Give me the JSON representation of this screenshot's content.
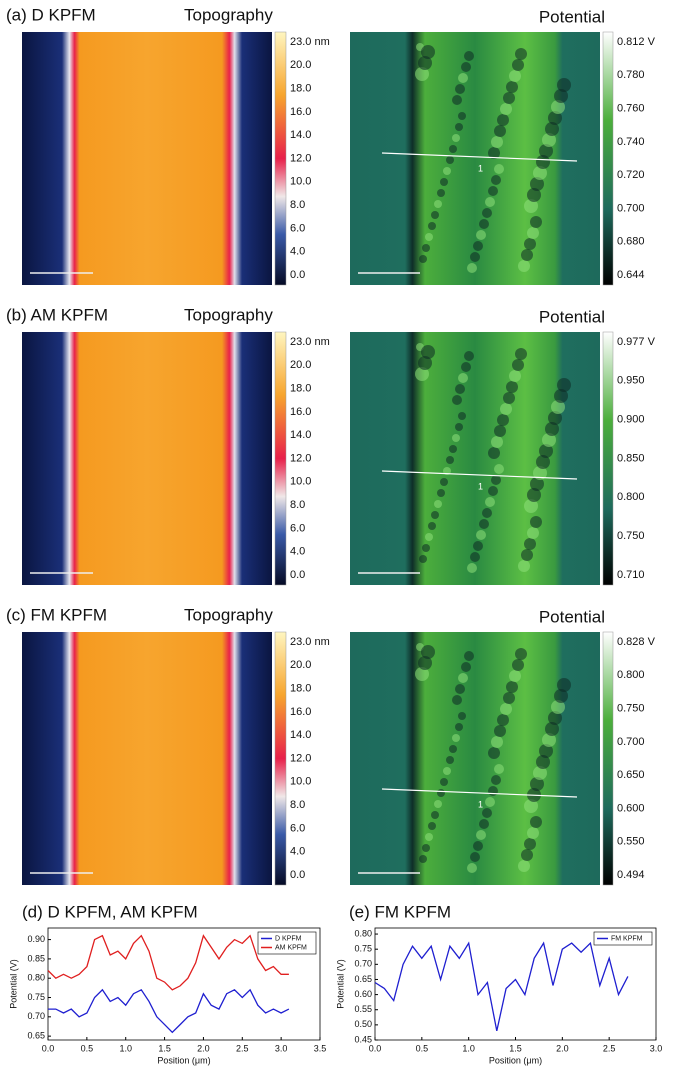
{
  "panels": [
    {
      "label": "(a) D KPFM",
      "topography": {
        "title": "Topography",
        "colorbar": [
          "23.0 nm",
          "20.0",
          "18.0",
          "16.0",
          "14.0",
          "12.0",
          "10.0",
          "8.0",
          "6.0",
          "4.0",
          "0.0"
        ]
      },
      "potential": {
        "title": "Potential",
        "colorbar": [
          "0.812 V",
          "0.780",
          "0.760",
          "0.740",
          "0.720",
          "0.700",
          "0.680",
          "0.644"
        ],
        "profile": "1"
      }
    },
    {
      "label": "(b) AM KPFM",
      "topography": {
        "title": "Topography",
        "colorbar": [
          "23.0 nm",
          "20.0",
          "18.0",
          "16.0",
          "14.0",
          "12.0",
          "10.0",
          "8.0",
          "6.0",
          "4.0",
          "0.0"
        ]
      },
      "potential": {
        "title": "Potential",
        "colorbar": [
          "0.977 V",
          "0.950",
          "0.900",
          "0.850",
          "0.800",
          "0.750",
          "0.710"
        ],
        "profile": "1"
      }
    },
    {
      "label": "(c) FM KPFM",
      "topography": {
        "title": "Topography",
        "colorbar": [
          "23.0 nm",
          "20.0",
          "18.0",
          "16.0",
          "14.0",
          "12.0",
          "10.0",
          "8.0",
          "6.0",
          "4.0",
          "0.0"
        ]
      },
      "potential": {
        "title": "Potential",
        "colorbar": [
          "0.828 V",
          "0.800",
          "0.750",
          "0.700",
          "0.650",
          "0.600",
          "0.550",
          "0.494"
        ],
        "profile": "1"
      }
    }
  ],
  "chart_data": [
    {
      "type": "line",
      "title": "(d) D KPFM, AM KPFM",
      "xlabel": "Position (μm)",
      "ylabel": "Potential (V)",
      "x": [
        0,
        0.1,
        0.2,
        0.3,
        0.4,
        0.5,
        0.6,
        0.7,
        0.8,
        0.9,
        1.0,
        1.1,
        1.2,
        1.3,
        1.4,
        1.5,
        1.6,
        1.7,
        1.8,
        1.9,
        2.0,
        2.1,
        2.2,
        2.3,
        2.4,
        2.5,
        2.6,
        2.7,
        2.8,
        2.9,
        3.0,
        3.1
      ],
      "series": [
        {
          "name": "D KPFM",
          "color": "#1f1fd0",
          "values": [
            0.72,
            0.72,
            0.71,
            0.72,
            0.7,
            0.71,
            0.75,
            0.77,
            0.74,
            0.75,
            0.73,
            0.76,
            0.77,
            0.74,
            0.7,
            0.68,
            0.66,
            0.68,
            0.7,
            0.71,
            0.76,
            0.73,
            0.72,
            0.76,
            0.77,
            0.75,
            0.77,
            0.73,
            0.71,
            0.72,
            0.71,
            0.72
          ]
        },
        {
          "name": "AM KPFM",
          "color": "#e01f1f",
          "values": [
            0.82,
            0.8,
            0.81,
            0.8,
            0.81,
            0.83,
            0.9,
            0.91,
            0.86,
            0.87,
            0.85,
            0.89,
            0.91,
            0.87,
            0.8,
            0.79,
            0.77,
            0.78,
            0.8,
            0.84,
            0.91,
            0.88,
            0.85,
            0.88,
            0.9,
            0.89,
            0.91,
            0.85,
            0.82,
            0.83,
            0.81,
            0.81
          ]
        }
      ],
      "xlim": [
        0,
        3.5
      ],
      "xticks": [
        {
          "value": 0,
          "label": "0.0"
        },
        0.5,
        {
          "value": 1,
          "label": "1.0"
        },
        1.5,
        {
          "value": 2,
          "label": "2.0"
        },
        2.5,
        {
          "value": 3,
          "label": "3.0"
        },
        3.5
      ],
      "ylim": [
        0.64,
        0.93
      ],
      "yticks": [
        0.65,
        {
          "value": 0.7,
          "label": "0.70"
        },
        0.75,
        {
          "value": 0.8,
          "label": "0.80"
        },
        0.85,
        {
          "value": 0.9,
          "label": "0.90"
        }
      ],
      "legend": "upper right"
    },
    {
      "type": "line",
      "title": "(e) FM KPFM",
      "xlabel": "Position (μm)",
      "ylabel": "Potential (V)",
      "x": [
        0,
        0.1,
        0.2,
        0.3,
        0.4,
        0.5,
        0.6,
        0.7,
        0.8,
        0.9,
        1.0,
        1.1,
        1.2,
        1.3,
        1.4,
        1.5,
        1.6,
        1.7,
        1.8,
        1.9,
        2.0,
        2.1,
        2.2,
        2.3,
        2.4,
        2.5,
        2.6,
        2.7
      ],
      "series": [
        {
          "name": "FM KPFM",
          "color": "#1f1fd0",
          "values": [
            0.64,
            0.62,
            0.58,
            0.7,
            0.76,
            0.72,
            0.76,
            0.65,
            0.76,
            0.72,
            0.77,
            0.6,
            0.64,
            0.48,
            0.62,
            0.65,
            0.6,
            0.72,
            0.77,
            0.63,
            0.75,
            0.77,
            0.74,
            0.77,
            0.63,
            0.72,
            0.6,
            0.66
          ]
        }
      ],
      "xlim": [
        0,
        3
      ],
      "xticks": [
        {
          "value": 0,
          "label": "0.0"
        },
        0.5,
        {
          "value": 1,
          "label": "1.0"
        },
        1.5,
        {
          "value": 2,
          "label": "2.0"
        },
        2.5,
        {
          "value": 3,
          "label": "3.0"
        }
      ],
      "ylim": [
        0.45,
        0.82
      ],
      "yticks": [
        0.45,
        {
          "value": 0.5,
          "label": "0.50"
        },
        0.55,
        {
          "value": 0.6,
          "label": "0.60"
        },
        0.65,
        {
          "value": 0.7,
          "label": "0.70"
        },
        0.75,
        {
          "value": 0.8,
          "label": "0.80"
        }
      ],
      "legend": "upper right"
    }
  ]
}
